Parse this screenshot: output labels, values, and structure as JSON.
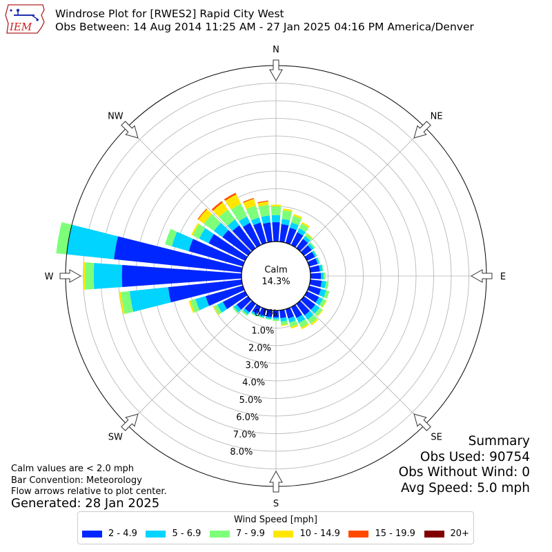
{
  "header": {
    "title": "Windrose Plot for [RWES2] Rapid City West",
    "subtitle": "Obs Between: 14 Aug 2014 11:25 AM - 27 Jan 2025 04:16 PM America/Denver"
  },
  "logo": {
    "text": "IEM"
  },
  "footnotes": {
    "calm_note": "Calm values are < 2.0 mph",
    "bar_convention": "Bar Convention: Meteorology",
    "flow_note": "Flow arrows relative to plot center.",
    "generated": "Generated: 28 Jan 2025"
  },
  "summary": {
    "heading": "Summary",
    "obs_used": "Obs Used: 90754",
    "obs_without_wind": "Obs Without Wind: 0",
    "avg_speed": "Avg Speed: 5.0 mph"
  },
  "chart_data": {
    "type": "windrose",
    "calm_label": "Calm",
    "calm_percent": "14.3%",
    "direction_labels": [
      "N",
      "NE",
      "E",
      "SE",
      "S",
      "SW",
      "W",
      "NW"
    ],
    "radial_ticks": [
      "0.0%",
      "1.0%",
      "2.0%",
      "3.0%",
      "4.0%",
      "5.0%",
      "6.0%",
      "7.0%",
      "8.0%"
    ],
    "radial_max_percent": 10.0,
    "legend_title": "Wind Speed [mph]",
    "speed_bins": [
      {
        "label": "2 - 4.9",
        "color": "#0026ff"
      },
      {
        "label": "5 - 6.9",
        "color": "#00d4ff"
      },
      {
        "label": "7 - 9.9",
        "color": "#7dff7a"
      },
      {
        "label": "10 - 14.9",
        "color": "#ffe600"
      },
      {
        "label": "15 - 19.9",
        "color": "#ff4a00"
      },
      {
        "label": "20+",
        "color": "#800000"
      }
    ],
    "sector_count": 36,
    "sector_directions_deg": [
      0,
      10,
      20,
      30,
      40,
      50,
      60,
      70,
      80,
      90,
      100,
      110,
      120,
      130,
      140,
      150,
      160,
      170,
      180,
      190,
      200,
      210,
      220,
      230,
      240,
      250,
      260,
      270,
      280,
      290,
      300,
      310,
      320,
      330,
      340,
      350
    ],
    "sector_values_percent": [
      [
        1.1,
        0.4,
        0.5,
        0.1,
        0,
        0
      ],
      [
        1.0,
        0.3,
        0.5,
        0.1,
        0,
        0
      ],
      [
        0.9,
        0.3,
        0.4,
        0.1,
        0,
        0
      ],
      [
        0.8,
        0.25,
        0.3,
        0.1,
        0,
        0
      ],
      [
        0.65,
        0.2,
        0.15,
        0.05,
        0,
        0
      ],
      [
        0.55,
        0.15,
        0.1,
        0,
        0,
        0
      ],
      [
        0.5,
        0.1,
        0.05,
        0,
        0,
        0
      ],
      [
        0.5,
        0.1,
        0.05,
        0,
        0,
        0
      ],
      [
        0.55,
        0.15,
        0.05,
        0,
        0,
        0
      ],
      [
        0.6,
        0.15,
        0.1,
        0,
        0,
        0
      ],
      [
        0.65,
        0.25,
        0.15,
        0,
        0,
        0
      ],
      [
        0.7,
        0.3,
        0.2,
        0,
        0,
        0
      ],
      [
        0.75,
        0.25,
        0.2,
        0.05,
        0,
        0
      ],
      [
        0.8,
        0.3,
        0.2,
        0.05,
        0,
        0
      ],
      [
        0.8,
        0.3,
        0.3,
        0.1,
        0,
        0
      ],
      [
        0.7,
        0.3,
        0.3,
        0.1,
        0,
        0
      ],
      [
        0.55,
        0.25,
        0.25,
        0.1,
        0,
        0
      ],
      [
        0.45,
        0.2,
        0.2,
        0.05,
        0,
        0
      ],
      [
        0.4,
        0.1,
        0.1,
        0,
        0,
        0
      ],
      [
        0.4,
        0.1,
        0.05,
        0,
        0,
        0
      ],
      [
        0.4,
        0.1,
        0.05,
        0,
        0,
        0
      ],
      [
        0.45,
        0.1,
        0.05,
        0,
        0,
        0
      ],
      [
        0.6,
        0.15,
        0.1,
        0,
        0,
        0
      ],
      [
        0.8,
        0.2,
        0.1,
        0,
        0,
        0
      ],
      [
        1.4,
        0.35,
        0.2,
        0.05,
        0,
        0
      ],
      [
        2.2,
        0.6,
        0.3,
        0.1,
        0,
        0
      ],
      [
        4.2,
        2.2,
        0.5,
        0.1,
        0,
        0
      ],
      [
        6.8,
        1.6,
        0.5,
        0.1,
        0,
        0
      ],
      [
        7.3,
        2.7,
        0.6,
        0,
        0,
        0
      ],
      [
        3.2,
        1.0,
        0.4,
        0,
        0,
        0
      ],
      [
        2.3,
        0.6,
        0.4,
        0.1,
        0,
        0
      ],
      [
        1.8,
        0.6,
        0.7,
        0.4,
        0.05,
        0
      ],
      [
        1.6,
        0.4,
        0.7,
        0.5,
        0.1,
        0
      ],
      [
        1.4,
        0.4,
        0.8,
        0.6,
        0.1,
        0
      ],
      [
        1.2,
        0.3,
        0.7,
        0.4,
        0.05,
        0
      ],
      [
        1.1,
        0.4,
        0.6,
        0.2,
        0.05,
        0
      ]
    ]
  }
}
